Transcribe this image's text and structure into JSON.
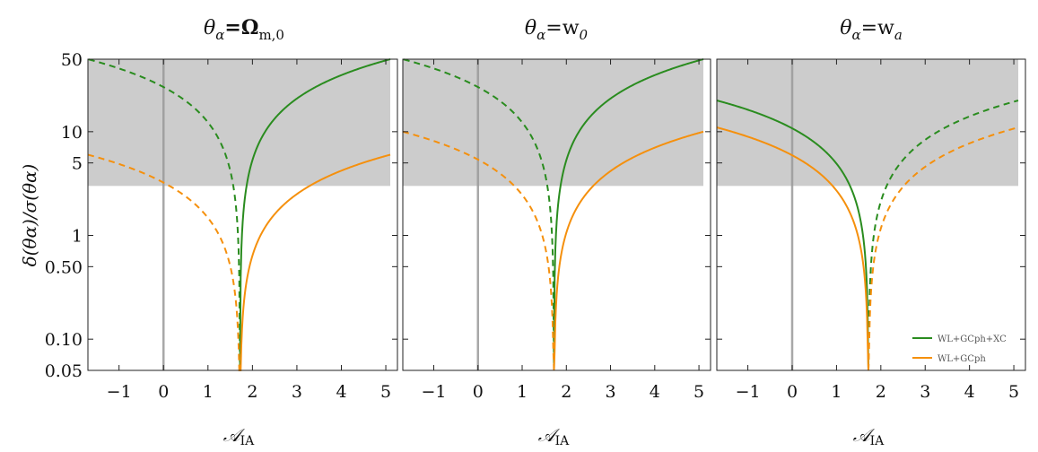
{
  "chart_data": {
    "type": "line",
    "shared": {
      "ylabel": "δ(θα)/σ(θα)",
      "xlabel": "𝒜IA",
      "yscale": "log",
      "xlim": [
        -1.7,
        5.1
      ],
      "ylim": [
        0.05,
        50
      ],
      "xticks": [
        "−1",
        "0",
        "1",
        "2",
        "3",
        "4",
        "5"
      ],
      "xtick_values": [
        -1,
        0,
        1,
        2,
        3,
        4,
        5
      ],
      "yticks": [
        "0.05",
        "0.10",
        "0.50",
        "1",
        "5",
        "10",
        "50"
      ],
      "ytick_values": [
        0.05,
        0.1,
        0.5,
        1,
        5,
        10,
        50
      ],
      "shaded_region": {
        "y_from": 3,
        "y_to": 50,
        "color": "#cccccc"
      },
      "reference_vline_x": 0,
      "zero_crossing_x": 1.72,
      "line_styles": {
        "dashed": "dashed",
        "solid": "solid"
      }
    },
    "legend": {
      "placement": "bottom-right of third panel",
      "entries": [
        {
          "label": "WL+GCph+XC",
          "color": "#2a8c1f"
        },
        {
          "label": "WL+GCph",
          "color": "#f5900d"
        }
      ]
    },
    "panels": [
      {
        "title": "θα=Ωm,0",
        "series": [
          {
            "name": "WL+GCph+XC",
            "color": "#2a8c1f",
            "at_x_min": 50,
            "at_x_max": 50,
            "style_left": "dashed",
            "style_right": "solid"
          },
          {
            "name": "WL+GCph",
            "color": "#f5900d",
            "at_x_min": 6.0,
            "at_x_max": 6.0,
            "style_left": "dashed",
            "style_right": "solid"
          }
        ]
      },
      {
        "title": "θα=w0",
        "series": [
          {
            "name": "WL+GCph+XC",
            "color": "#2a8c1f",
            "at_x_min": 50,
            "at_x_max": 50,
            "style_left": "dashed",
            "style_right": "solid"
          },
          {
            "name": "WL+GCph",
            "color": "#f5900d",
            "at_x_min": 10,
            "at_x_max": 10,
            "style_left": "dashed",
            "style_right": "solid"
          }
        ]
      },
      {
        "title": "θα=wa",
        "series": [
          {
            "name": "WL+GCph+XC",
            "color": "#2a8c1f",
            "at_x_min": 20,
            "at_x_max": 20,
            "style_left": "solid",
            "style_right": "dashed"
          },
          {
            "name": "WL+GCph",
            "color": "#f5900d",
            "at_x_min": 11,
            "at_x_max": 11,
            "style_left": "solid",
            "style_right": "dashed"
          }
        ]
      }
    ]
  },
  "texts": {
    "title_1_base": "θ",
    "title_1_sub": "α",
    "title_1_rhs": "=Ω",
    "title_1_rhs_sub": "m,0",
    "title_2_base": "θ",
    "title_2_sub": "α",
    "title_2_rhs": "=w",
    "title_2_rhs_sub": "0",
    "title_3_base": "θ",
    "title_3_sub": "α",
    "title_3_rhs": "=w",
    "title_3_rhs_sub": "a",
    "ylabel": "δ(θα)/σ(θα)",
    "xlabel_main": "𝒜",
    "xlabel_sub": "IA",
    "legend_1": "WL+GCph+XC",
    "legend_2": "WL+GCph"
  }
}
